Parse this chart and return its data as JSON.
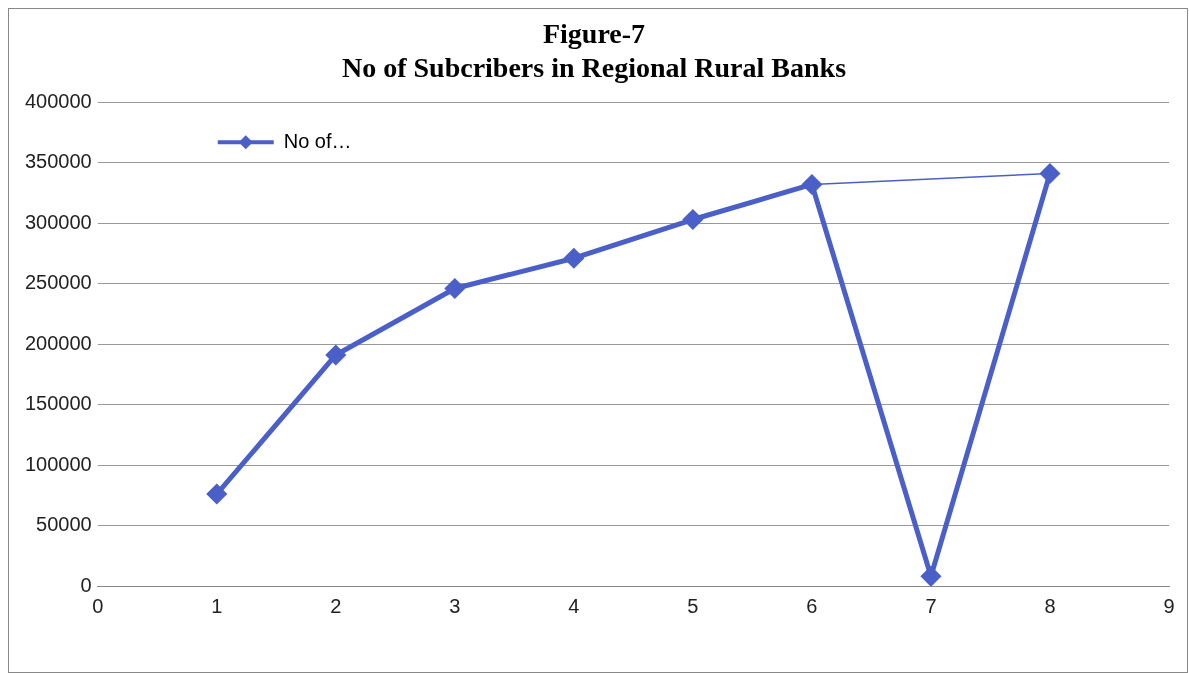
{
  "chart_data": {
    "type": "line",
    "title": "Figure-7",
    "subtitle": "No of Subcribers in Regional Rural Banks",
    "x": [
      1,
      2,
      3,
      4,
      5,
      6,
      7,
      8
    ],
    "series": [
      {
        "name": "No of…",
        "color": "#4a5fc8",
        "values": [
          76000,
          191000,
          246000,
          271000,
          303000,
          332000,
          8000,
          341000
        ]
      },
      {
        "color": "#4a5fc8",
        "x": [
          6,
          8
        ],
        "values": [
          332000,
          341000
        ],
        "marker": "none"
      }
    ],
    "xlim": [
      0,
      9
    ],
    "xticks": [
      0,
      1,
      2,
      3,
      4,
      5,
      6,
      7,
      8,
      9
    ],
    "ylim": [
      0,
      400000
    ],
    "yticks": [
      0,
      50000,
      100000,
      150000,
      200000,
      250000,
      300000,
      350000,
      400000
    ],
    "grid": "y",
    "legend": "top left",
    "marker": "diamond",
    "line_style": "solid"
  }
}
